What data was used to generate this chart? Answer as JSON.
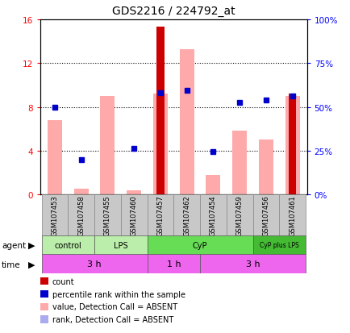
{
  "title": "GDS2216 / 224792_at",
  "samples": [
    "GSM107453",
    "GSM107458",
    "GSM107455",
    "GSM107460",
    "GSM107457",
    "GSM107462",
    "GSM107454",
    "GSM107459",
    "GSM107456",
    "GSM107461"
  ],
  "count_values": [
    0,
    0,
    0,
    0,
    15.3,
    0,
    0,
    0,
    0,
    9.2
  ],
  "pink_bar_values": [
    6.8,
    0.5,
    9.0,
    0.4,
    9.2,
    13.3,
    1.8,
    5.8,
    5.0,
    9.0
  ],
  "blue_square_values": [
    8.0,
    3.2,
    null,
    4.2,
    9.3,
    9.5,
    3.9,
    8.4,
    8.6,
    9.0
  ],
  "light_blue_square_values": [
    null,
    null,
    null,
    null,
    null,
    null,
    null,
    null,
    null,
    null
  ],
  "ylim_left": [
    0,
    16
  ],
  "ylim_right": [
    0,
    100
  ],
  "yticks_left": [
    0,
    4,
    8,
    12,
    16
  ],
  "yticks_right": [
    0,
    25,
    50,
    75,
    100
  ],
  "ytick_labels_left": [
    "0",
    "4",
    "8",
    "12",
    "16"
  ],
  "ytick_labels_right": [
    "0%",
    "25%",
    "50%",
    "75%",
    "100%"
  ],
  "agent_groups": [
    {
      "label": "control",
      "start": 0,
      "end": 2,
      "color": "#BBEEAA"
    },
    {
      "label": "LPS",
      "start": 2,
      "end": 4,
      "color": "#BBEEAA"
    },
    {
      "label": "CyP",
      "start": 4,
      "end": 8,
      "color": "#66DD55"
    },
    {
      "label": "CyP plus LPS",
      "start": 8,
      "end": 10,
      "color": "#44BB33"
    }
  ],
  "time_groups": [
    {
      "label": "3 h",
      "start": 0,
      "end": 4,
      "color": "#EE66EE"
    },
    {
      "label": "1 h",
      "start": 4,
      "end": 6,
      "color": "#EE66EE"
    },
    {
      "label": "3 h",
      "start": 6,
      "end": 10,
      "color": "#EE66EE"
    }
  ],
  "legend_items": [
    {
      "color": "#CC0000",
      "label": "count"
    },
    {
      "color": "#0000CC",
      "label": "percentile rank within the sample"
    },
    {
      "color": "#FFAAAA",
      "label": "value, Detection Call = ABSENT"
    },
    {
      "color": "#AAAAEE",
      "label": "rank, Detection Call = ABSENT"
    }
  ],
  "dark_red": "#CC0000",
  "pink": "#FFAAAA",
  "dark_blue": "#0000CC",
  "light_blue": "#AAAAEE"
}
